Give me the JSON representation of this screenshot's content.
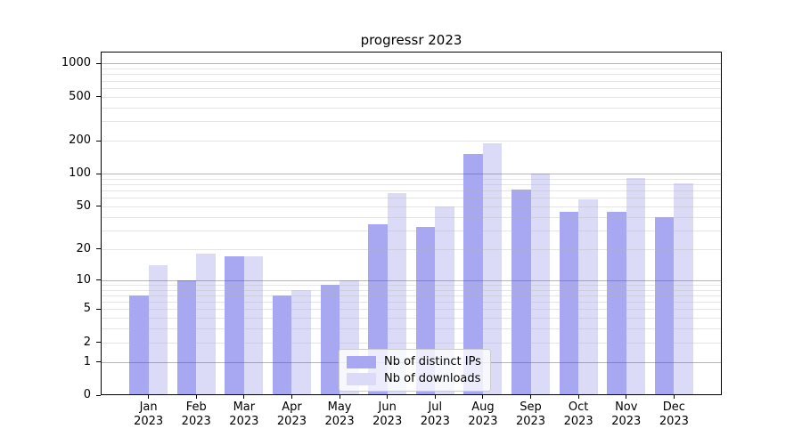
{
  "title": "progressr 2023",
  "chart_data": {
    "type": "bar",
    "title": "progressr 2023",
    "categories": [
      "Jan 2023",
      "Feb 2023",
      "Mar 2023",
      "Apr 2023",
      "May 2023",
      "Jun 2023",
      "Jul 2023",
      "Aug 2023",
      "Sep 2023",
      "Oct 2023",
      "Nov 2023",
      "Dec 2023"
    ],
    "series": [
      {
        "name": "Nb of distinct IPs",
        "color": "#a7a7f2",
        "values": [
          7,
          10,
          17,
          7,
          9,
          34,
          32,
          150,
          72,
          45,
          45,
          40
        ]
      },
      {
        "name": "Nb of downloads",
        "color": "#dbdbf8",
        "values": [
          14,
          18,
          17,
          8,
          10,
          66,
          50,
          190,
          101,
          58,
          92,
          81
        ]
      }
    ],
    "xlabel": "",
    "ylabel": "",
    "yscale": "log1p",
    "yticks": [
      0,
      1,
      2,
      5,
      10,
      20,
      50,
      100,
      200,
      500,
      1000
    ],
    "minor_gridlines": [
      2,
      3,
      4,
      5,
      6,
      7,
      8,
      9,
      20,
      30,
      40,
      50,
      60,
      70,
      80,
      90,
      200,
      300,
      400,
      500,
      600,
      700,
      800,
      900
    ],
    "major_gridlines": [
      1,
      10,
      100,
      1000
    ],
    "ylim": [
      0,
      1285
    ],
    "grid": true,
    "legend_position": "lower center",
    "colors": {
      "grid_major": "#b0b0b0",
      "grid_minor": "#e6e6e6",
      "axis": "#000000",
      "background": "#ffffff"
    }
  },
  "legend": {
    "items": [
      {
        "label": "Nb of distinct IPs"
      },
      {
        "label": "Nb of downloads"
      }
    ]
  }
}
